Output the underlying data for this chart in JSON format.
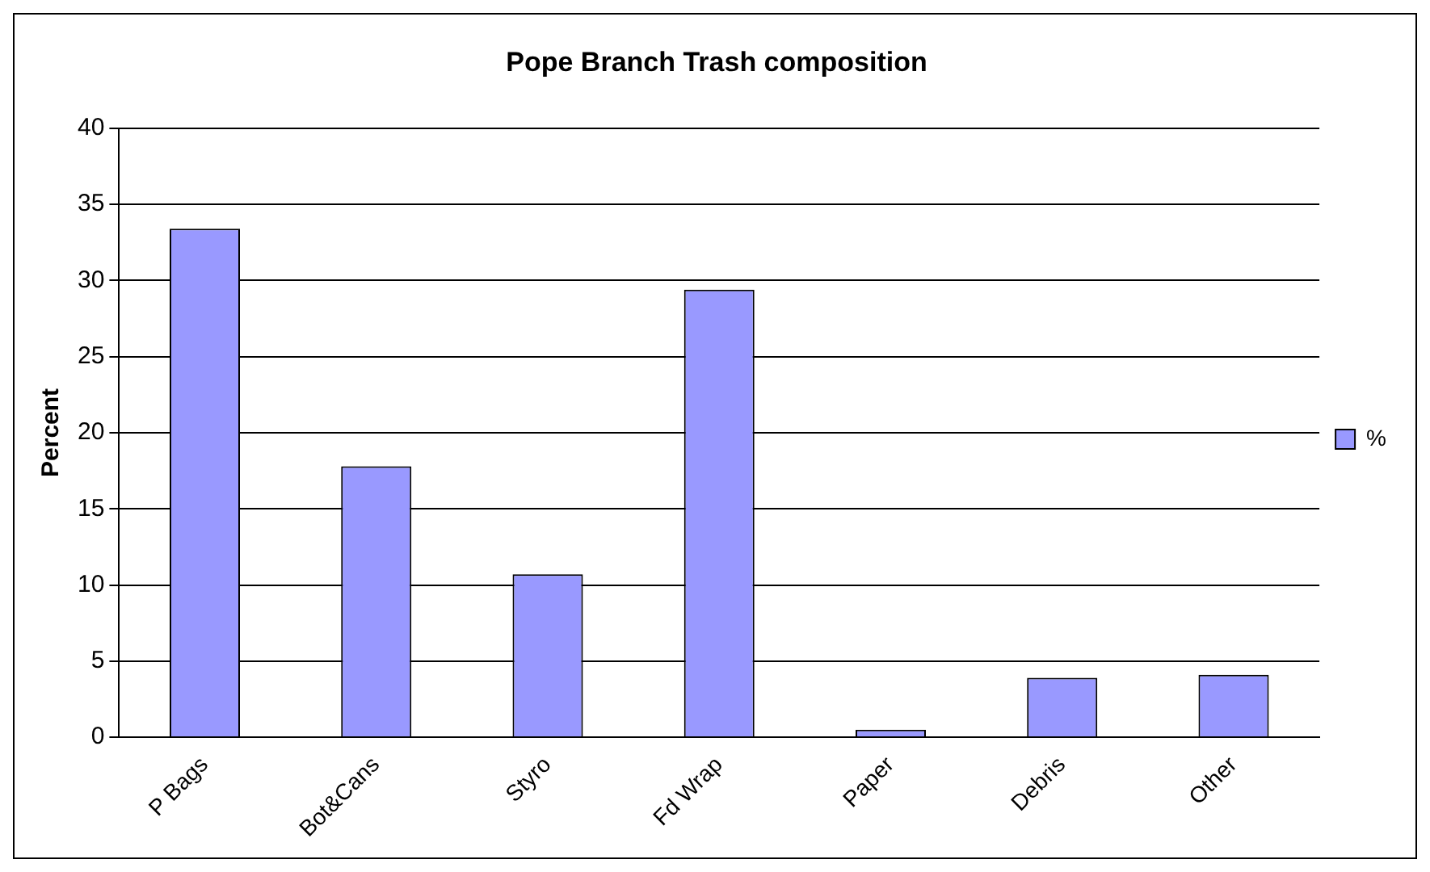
{
  "chart_data": {
    "type": "bar",
    "title": "Pope Branch Trash composition",
    "ylabel": "Percent",
    "categories": [
      "P Bags",
      "Bot&Cans",
      "Styro",
      "Fd Wrap",
      "Paper",
      "Debris",
      "Other"
    ],
    "series": [
      {
        "name": "%",
        "color": "#9999ff",
        "values": [
          33.4,
          17.8,
          10.7,
          29.4,
          0.5,
          3.9,
          4.1
        ]
      }
    ],
    "ylim": [
      0,
      40
    ],
    "yticks": [
      0,
      5,
      10,
      15,
      20,
      25,
      30,
      35,
      40
    ],
    "grid": "y",
    "legend": "right"
  }
}
